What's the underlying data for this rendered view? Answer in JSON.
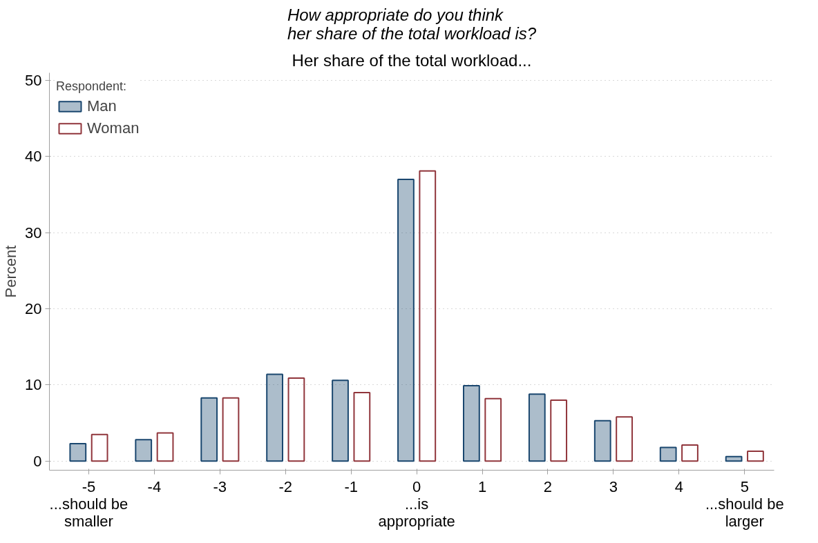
{
  "chart_data": {
    "type": "bar",
    "title": "How appropriate do you think\nher share of the total workload is?",
    "subtitle": "Her share of the total workload...",
    "ylabel": "Percent",
    "legend_title": "Respondent:",
    "x": [
      -5,
      -4,
      -3,
      -2,
      -1,
      0,
      1,
      2,
      3,
      4,
      5
    ],
    "series": [
      {
        "name": "Man",
        "color": "#1a476f",
        "values": [
          2.3,
          2.8,
          8.3,
          11.4,
          10.6,
          37.0,
          9.9,
          8.8,
          5.3,
          1.8,
          0.6
        ]
      },
      {
        "name": "Woman",
        "color": "#90353b",
        "values": [
          3.5,
          3.7,
          8.3,
          10.9,
          9.0,
          38.1,
          8.2,
          8.0,
          5.8,
          2.1,
          1.3
        ]
      }
    ],
    "xlim": [
      -5.6,
      5.45
    ],
    "xticks": [
      {
        "value": -5,
        "label": "-5\n...should be\nsmaller"
      },
      -4,
      -3,
      -2,
      -1,
      {
        "value": 0,
        "label": "0\n...is\nappropriate"
      },
      1,
      2,
      3,
      4,
      {
        "value": 5,
        "label": "5\n...should be\nlarger"
      }
    ],
    "ylim": [
      -1.2,
      51
    ],
    "yticks": [
      0,
      10,
      20,
      30,
      40,
      50
    ],
    "grid": "y",
    "legend": "top left"
  }
}
